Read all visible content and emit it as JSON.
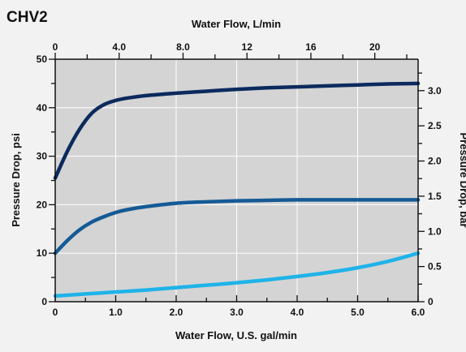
{
  "chart_data": {
    "type": "line",
    "title": "CHV2",
    "xlabel": "Water Flow, U.S. gal/min",
    "x2label": "Water Flow, L/min",
    "ylabel": "Pressure Drop, psi",
    "y2label": "Pressure Drop, bar",
    "xlim": [
      0,
      6
    ],
    "ylim": [
      0,
      50
    ],
    "x2lim": [
      0,
      22.71
    ],
    "y2lim": [
      0,
      3.447
    ],
    "x_ticks": [
      "0",
      "1.0",
      "2.0",
      "3.0",
      "4.0",
      "5.0",
      "6.0"
    ],
    "x_tick_values": [
      0,
      1,
      2,
      3,
      4,
      5,
      6
    ],
    "x_minor_step": 0.5,
    "y_ticks": [
      "0",
      "10",
      "20",
      "30",
      "40",
      "50"
    ],
    "y_tick_values": [
      0,
      10,
      20,
      30,
      40,
      50
    ],
    "y_minor_step": 5,
    "x2_ticks": [
      "0",
      "4.0",
      "8.0",
      "12",
      "16",
      "20"
    ],
    "x2_tick_values": [
      0,
      4,
      8,
      12,
      16,
      20
    ],
    "x2_minor_step": 2,
    "y2_ticks": [
      "0",
      "0.5",
      "1.0",
      "1.5",
      "2.0",
      "2.5",
      "3.0"
    ],
    "y2_tick_values": [
      0,
      0.5,
      1.0,
      1.5,
      2.0,
      2.5,
      3.0
    ],
    "y2_minor_step": 0.25,
    "grid": true,
    "series": [
      {
        "color": "#0b2a5e",
        "x": [
          0,
          0.2,
          0.4,
          0.6,
          0.8,
          1.0,
          1.2,
          1.5,
          2.0,
          2.5,
          3.0,
          3.5,
          4.0,
          4.5,
          5.0,
          5.5,
          6.0
        ],
        "y": [
          25.5,
          31,
          35.5,
          38.8,
          40.6,
          41.5,
          42.0,
          42.5,
          43.0,
          43.4,
          43.8,
          44.1,
          44.3,
          44.5,
          44.7,
          44.9,
          45.0
        ]
      },
      {
        "color": "#155a96",
        "x": [
          0,
          0.2,
          0.4,
          0.6,
          0.8,
          1.0,
          1.2,
          1.5,
          2.0,
          2.5,
          3.0,
          3.5,
          4.0,
          4.5,
          5.0,
          5.5,
          6.0
        ],
        "y": [
          10,
          12.6,
          14.8,
          16.4,
          17.5,
          18.4,
          19.0,
          19.6,
          20.3,
          20.6,
          20.8,
          20.9,
          21.0,
          21.0,
          21.0,
          21.0,
          21.0
        ]
      },
      {
        "color": "#1fb3e8",
        "x": [
          0,
          0.5,
          1.0,
          1.5,
          2.0,
          2.5,
          3.0,
          3.5,
          4.0,
          4.5,
          5.0,
          5.5,
          6.0
        ],
        "y": [
          1.2,
          1.6,
          2.0,
          2.4,
          2.9,
          3.4,
          3.9,
          4.5,
          5.2,
          6.0,
          7.0,
          8.3,
          10.0
        ]
      }
    ]
  }
}
